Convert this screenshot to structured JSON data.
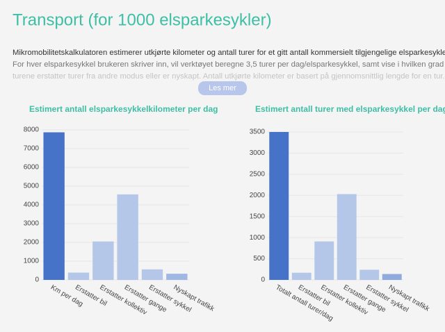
{
  "header": {
    "title": "Transport (for 1000 elsparkesykler)"
  },
  "intro": {
    "lines": [
      "Mikromobilitetskalkulatoren estimerer utkjørte kilometer og antall turer for et gitt antall kommersielt tilgjengelige elsparkesykler.",
      "For hver elsparkesykkel brukeren skriver inn, vil verktøyet beregne 3,5 turer per dag/elsparkesykkel, samt vise i hvilken grad",
      "turene erstatter turer fra andre modus eller er nyskapt. Antall utkjørte kilometer er basert på gjennomsnittlig lengde for en tur."
    ],
    "button": "Les mer"
  },
  "chart_data": [
    {
      "type": "bar",
      "title": "Estimert antall elsparkesykkelkilometer per dag",
      "categories": [
        "Km per dag",
        "Erstatter bil",
        "Erstatter kollektiv",
        "Erstatter gange",
        "Erstatter sykkel",
        "Nyskapt trafikk"
      ],
      "values": [
        7870,
        390,
        2050,
        4560,
        560,
        330
      ],
      "colors": [
        "#4673c8",
        "#b4c7e8",
        "#b4c7e8",
        "#b4c7e8",
        "#b4c7e8",
        "#9fb8e3"
      ],
      "ylim": [
        0,
        8000
      ],
      "yticks": [
        0,
        1000,
        2000,
        3000,
        4000,
        5000,
        6000,
        7000,
        8000
      ],
      "grid": true
    },
    {
      "type": "bar",
      "title": "Estimert antall turer med elsparkesykkel per dag",
      "categories": [
        "Totalt antall turer/dag",
        "Erstatter bil",
        "Erstatter kollektiv",
        "Erstatter gange",
        "Erstatter sykkel",
        "Nyskapt trafikk"
      ],
      "values": [
        3500,
        170,
        910,
        2030,
        240,
        140
      ],
      "colors": [
        "#4673c8",
        "#b4c7e8",
        "#b4c7e8",
        "#b4c7e8",
        "#b4c7e8",
        "#8faadc"
      ],
      "ylim": [
        0,
        3500
      ],
      "yticks": [
        0,
        500,
        1000,
        1500,
        2000,
        2500,
        3000,
        3500
      ],
      "grid": true
    }
  ]
}
